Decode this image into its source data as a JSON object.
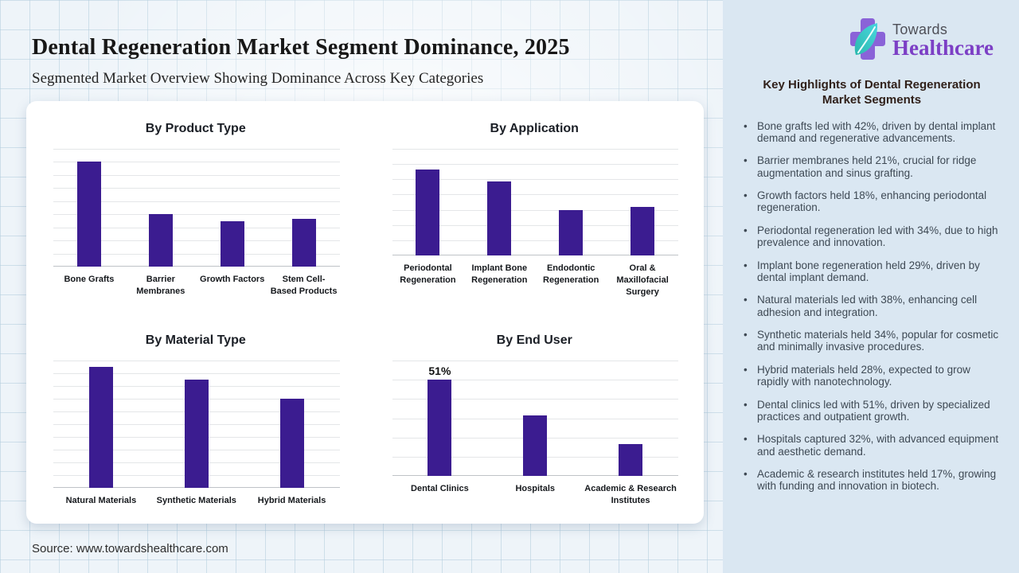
{
  "header": {
    "title": "Dental Regeneration Market Segment Dominance, 2025",
    "subtitle": "Segmented Market Overview Showing Dominance Across Key Categories"
  },
  "source": "Source: www.towardshealthcare.com",
  "logo": {
    "top": "Towards",
    "bottom": "Healthcare"
  },
  "sidebar": {
    "heading": "Key Highlights of Dental Regeneration Market Segments",
    "bullets": [
      "Bone grafts led with 42%, driven by dental implant demand and regenerative advancements.",
      "Barrier membranes held 21%, crucial for ridge augmentation and sinus grafting.",
      "Growth factors held 18%, enhancing periodontal regeneration.",
      "Periodontal regeneration led with 34%, due to high prevalence and innovation.",
      "Implant bone regeneration held 29%, driven by dental implant demand.",
      "Natural materials led with 38%, enhancing cell adhesion and integration.",
      "Synthetic materials held 34%, popular for cosmetic and minimally invasive procedures.",
      "Hybrid materials held 28%, expected to grow rapidly with nanotechnology.",
      "Dental clinics led with 51%, driven by specialized practices and outpatient growth.",
      "Hospitals captured 32%, with advanced equipment and aesthetic demand.",
      "Academic & research institutes held 17%, growing with funding and innovation in biotech."
    ]
  },
  "colors": {
    "bar": "#3b1c90",
    "brand_purple": "#7c3fc5",
    "brand_teal": "#3cc7c8",
    "sidebar_bg": "#dae7f2"
  },
  "chart_data": [
    {
      "type": "bar",
      "title": "By Product Type",
      "categories": [
        "Bone Grafts",
        "Barrier Membranes",
        "Growth Factors",
        "Stem Cell-Based Products"
      ],
      "values": [
        42,
        21,
        18,
        19
      ],
      "unit": "%",
      "ylim": [
        0,
        47
      ],
      "grid": true,
      "value_labels": [
        null,
        null,
        null,
        null
      ]
    },
    {
      "type": "bar",
      "title": "By Application",
      "categories": [
        "Periodontal Regeneration",
        "Implant Bone Regeneration",
        "Endodontic Regeneration",
        "Oral & Maxillofacial Surgery"
      ],
      "values": [
        34,
        29,
        18,
        19
      ],
      "unit": "%",
      "ylim": [
        0,
        42
      ],
      "grid": true,
      "value_labels": [
        null,
        null,
        null,
        null
      ]
    },
    {
      "type": "bar",
      "title": "By Material Type",
      "categories": [
        "Natural Materials",
        "Synthetic Materials",
        "Hybrid Materials"
      ],
      "values": [
        38,
        34,
        28
      ],
      "unit": "%",
      "ylim": [
        0,
        40
      ],
      "grid": true,
      "value_labels": [
        null,
        null,
        null
      ]
    },
    {
      "type": "bar",
      "title": "By End User",
      "categories": [
        "Dental Clinics",
        "Hospitals",
        "Academic & Research Institutes"
      ],
      "values": [
        51,
        32,
        17
      ],
      "unit": "%",
      "ylim": [
        0,
        61
      ],
      "grid": true,
      "value_labels": [
        "51%",
        null,
        null
      ]
    }
  ]
}
